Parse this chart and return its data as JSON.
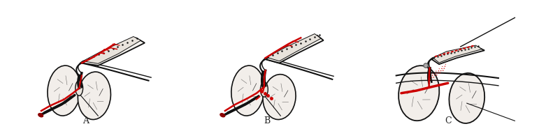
{
  "background_color": "#ffffff",
  "labels": [
    "A",
    "B",
    "C"
  ],
  "label_fontsize": 9,
  "fig_width": 7.81,
  "fig_height": 1.88,
  "dpi": 100,
  "sketch_color": "#111111",
  "vessel_color": "#cc0000",
  "muscle_face": "#f2eeea",
  "skin_face": "#f5f3ef",
  "fascia_face": "#e8e3dc"
}
